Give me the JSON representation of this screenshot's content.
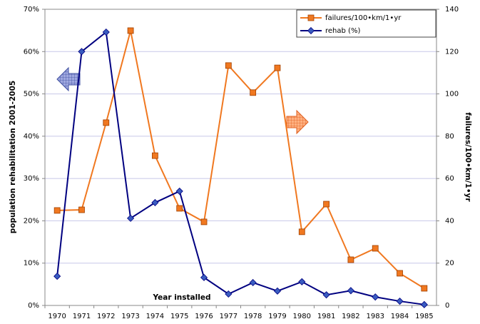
{
  "chart_data": {
    "type": "line",
    "xlabel": "Year installed",
    "ylabel": "population rehabilitation 2001-2005",
    "y2label": "failures/100•km/1•yr",
    "categories": [
      "1970",
      "1971",
      "1972",
      "1973",
      "1974",
      "1975",
      "1976",
      "1977",
      "1978",
      "1979",
      "1980",
      "1981",
      "1982",
      "1983",
      "1984",
      "1985"
    ],
    "series": [
      {
        "name": "failures/100•km/1•yr",
        "color": "#f07820",
        "axis": "y2",
        "marker": "square",
        "values": [
          44.9,
          45.2,
          86.4,
          129.9,
          70.8,
          45.9,
          39.5,
          113.4,
          100.6,
          112.3,
          34.8,
          47.9,
          21.6,
          27.0,
          15.2,
          8.1
        ]
      },
      {
        "name": "rehab (%)",
        "color": "#000080",
        "marker": "diamond",
        "values": [
          6.9,
          60.0,
          64.6,
          20.6,
          24.3,
          27.0,
          6.6,
          2.7,
          5.4,
          3.4,
          5.6,
          2.5,
          3.5,
          2.0,
          1.0,
          0.2
        ]
      }
    ],
    "ylim": [
      0,
      70
    ],
    "yticks": [
      {
        "value": 0,
        "label": "0%"
      },
      {
        "value": 10,
        "label": "10%"
      },
      {
        "value": 20,
        "label": "20%"
      },
      {
        "value": 30,
        "label": "30%"
      },
      {
        "value": 40,
        "label": "40%"
      },
      {
        "value": 50,
        "label": "50%"
      },
      {
        "value": 60,
        "label": "60%"
      },
      {
        "value": 70,
        "label": "70%"
      }
    ],
    "y2lim": [
      0,
      140
    ],
    "y2ticks": [
      0,
      20,
      40,
      60,
      80,
      100,
      120,
      140
    ],
    "grid": true,
    "legend": "top-right"
  }
}
